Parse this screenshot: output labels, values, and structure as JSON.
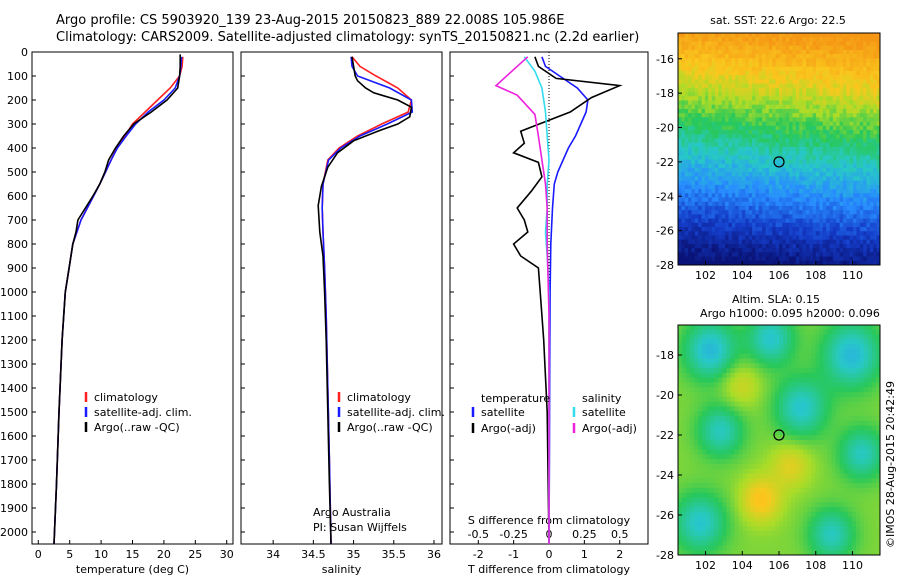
{
  "header": {
    "line1": "Argo profile: CS 5903920_139 23-Aug-2015 20150823_889 22.008S 105.986E",
    "line2": "Climatology: CARS2009. Satellite-adjusted climatology: synTS_20150821.nc (2.2d earlier)"
  },
  "credit": "©IMOS 28-Aug-2015 20:42:49",
  "colors": {
    "clim": "#ff2020",
    "sat": "#1a1aff",
    "argo": "#000000",
    "sal_sat": "#33ddee",
    "sal_argo": "#ee22dd"
  },
  "chart_data": [
    {
      "type": "line",
      "xlabel": "temperature (deg C)",
      "ylabel": "",
      "xlim": [
        -1,
        31
      ],
      "ylim": [
        0,
        2050
      ],
      "y_inverted": true,
      "xticks": [
        "0",
        "5",
        "10",
        "15",
        "20",
        "25",
        "30"
      ],
      "yticks": [
        "0",
        "100",
        "200",
        "300",
        "400",
        "500",
        "600",
        "700",
        "800",
        "900",
        "1000",
        "1100",
        "1200",
        "1300",
        "1400",
        "1500",
        "1600",
        "1700",
        "1800",
        "1900",
        "2000"
      ],
      "legend": [
        "climatology",
        "satellite-adj. clim.",
        "Argo(..raw -QC)"
      ],
      "series": [
        {
          "name": "climatology",
          "x": [
            23.0,
            22.9,
            22.5,
            21.0,
            19.0,
            17.0,
            15.0,
            13.8,
            12.5,
            11.6,
            10.7,
            9.8,
            8.8,
            7.8,
            6.8,
            5.5,
            4.9,
            4.3,
            3.8,
            3.3,
            2.9,
            2.5
          ],
          "y": [
            20,
            60,
            100,
            150,
            200,
            250,
            300,
            350,
            400,
            450,
            500,
            550,
            600,
            650,
            700,
            800,
            900,
            1000,
            1200,
            1500,
            1800,
            2050
          ]
        },
        {
          "name": "satellite-adj. clim.",
          "x": [
            22.8,
            22.7,
            22.5,
            21.8,
            20.0,
            17.5,
            15.5,
            14.0,
            12.6,
            11.6,
            10.7,
            9.8,
            8.8,
            7.8,
            6.8,
            5.5,
            4.9,
            4.3,
            3.8,
            3.3,
            2.9,
            2.5
          ],
          "y": [
            20,
            60,
            100,
            150,
            200,
            250,
            300,
            350,
            400,
            450,
            500,
            550,
            600,
            650,
            700,
            800,
            900,
            1000,
            1200,
            1500,
            1800,
            2050
          ]
        },
        {
          "name": "Argo(..raw -QC)",
          "x": [
            22.6,
            22.6,
            22.5,
            22.2,
            20.5,
            18.0,
            15.2,
            13.6,
            12.3,
            11.2,
            10.6,
            9.8,
            8.7,
            7.5,
            6.3,
            6.0,
            5.5,
            4.9,
            4.3,
            3.8,
            3.3,
            2.9,
            2.5
          ],
          "y": [
            10,
            60,
            100,
            150,
            200,
            250,
            300,
            350,
            400,
            450,
            500,
            550,
            600,
            650,
            700,
            750,
            800,
            900,
            1000,
            1200,
            1500,
            1800,
            2050
          ]
        }
      ]
    },
    {
      "type": "line",
      "xlabel": "salinity",
      "ylabel": "",
      "xlim": [
        33.6,
        36.1
      ],
      "ylim": [
        0,
        2050
      ],
      "y_inverted": true,
      "xticks": [
        "34",
        "34.5",
        "35",
        "35.5",
        "36"
      ],
      "legend": [
        "climatology",
        "satellite-adj. clim.",
        "Argo(..raw -QC)"
      ],
      "annotations": [
        "Argo Australia",
        "PI: Susan Wijffels"
      ],
      "series": [
        {
          "name": "climatology",
          "x": [
            34.98,
            35.08,
            35.28,
            35.55,
            35.72,
            35.68,
            35.35,
            35.05,
            34.82,
            34.68,
            34.62,
            34.61,
            34.62,
            34.64,
            34.66,
            34.68,
            34.7,
            34.72
          ],
          "y": [
            20,
            60,
            100,
            150,
            200,
            250,
            300,
            350,
            400,
            450,
            550,
            650,
            750,
            900,
            1100,
            1400,
            1700,
            2050
          ]
        },
        {
          "name": "satellite-adj. clim.",
          "x": [
            34.97,
            34.98,
            35.05,
            35.45,
            35.72,
            35.73,
            35.42,
            35.08,
            34.84,
            34.69,
            34.62,
            34.61,
            34.62,
            34.64,
            34.66,
            34.68,
            34.7,
            34.72
          ],
          "y": [
            20,
            60,
            100,
            150,
            200,
            250,
            300,
            350,
            400,
            450,
            550,
            650,
            750,
            900,
            1100,
            1400,
            1700,
            2050
          ]
        },
        {
          "name": "Argo(..raw -QC)",
          "x": [
            34.98,
            35.0,
            35.02,
            35.05,
            35.15,
            35.25,
            35.35,
            35.55,
            35.72,
            35.7,
            35.55,
            35.3,
            35.0,
            34.8,
            34.68,
            34.6,
            34.56,
            34.58,
            34.62,
            34.64,
            34.66,
            34.68,
            34.7,
            34.72
          ],
          "y": [
            20,
            60,
            100,
            120,
            150,
            170,
            180,
            200,
            230,
            270,
            300,
            330,
            370,
            420,
            480,
            560,
            640,
            750,
            850,
            1000,
            1200,
            1500,
            1800,
            2050
          ]
        }
      ]
    },
    {
      "type": "line",
      "xlabel": "T difference from climatology",
      "xlabel_top": "S difference from climatology",
      "ylabel": "",
      "xlim": [
        -2.8,
        2.8
      ],
      "ylim": [
        0,
        2050
      ],
      "y_inverted": true,
      "xticks": [
        "-2",
        "-1",
        "0",
        "1",
        "2"
      ],
      "xticks_top": [
        "-0.5",
        "-0.25",
        "0",
        "0.25",
        "0.5"
      ],
      "legend_left_title": "temperature",
      "legend_right_title": "salinity",
      "legend": [
        "satellite",
        "Argo(-adj)",
        "satellite",
        "Argo(-adj)"
      ],
      "series": [
        {
          "name": "temperature satellite",
          "x": [
            -0.2,
            -0.1,
            0.3,
            0.8,
            1.1,
            1.05,
            0.9,
            0.75,
            0.55,
            0.4,
            0.25,
            0.15,
            0.1,
            0.05,
            0.03,
            0.02,
            0.01,
            0.0
          ],
          "y": [
            20,
            60,
            100,
            150,
            200,
            250,
            300,
            350,
            400,
            450,
            500,
            550,
            650,
            800,
            1000,
            1300,
            1700,
            2050
          ]
        },
        {
          "name": "temperature Argo(-adj)",
          "x": [
            -0.4,
            -0.3,
            0.2,
            2.0,
            1.2,
            0.6,
            -0.8,
            -0.7,
            -1.0,
            -0.3,
            -0.2,
            -0.5,
            -0.9,
            -0.7,
            -0.6,
            -1.0,
            -0.8,
            -0.3,
            -0.25,
            -0.15,
            -0.05,
            0.0
          ],
          "y": [
            20,
            60,
            110,
            140,
            190,
            250,
            330,
            380,
            420,
            460,
            520,
            580,
            650,
            700,
            750,
            800,
            850,
            900,
            1000,
            1200,
            1500,
            2050
          ]
        },
        {
          "name": "salinity satellite",
          "x": [
            -0.7,
            -0.4,
            -0.2,
            -0.1,
            -0.05,
            0.0,
            -0.05,
            -0.05,
            -0.1,
            -0.05,
            0.0,
            0.0,
            0.0
          ],
          "y": [
            20,
            80,
            150,
            250,
            350,
            450,
            550,
            650,
            750,
            850,
            1000,
            1400,
            2050
          ]
        },
        {
          "name": "salinity Argo(-adj)",
          "x": [
            -0.6,
            -1.5,
            -0.9,
            -0.4,
            -0.3,
            -0.2,
            -0.1,
            -0.05,
            -0.05,
            0.0,
            0.0
          ],
          "y": [
            20,
            140,
            180,
            260,
            350,
            450,
            550,
            650,
            800,
            1100,
            2050
          ]
        }
      ]
    },
    {
      "type": "heatmap",
      "title": "sat. SST: 22.6  Argo: 22.5",
      "xlim": [
        100.5,
        111.5
      ],
      "ylim": [
        -28,
        -14.5
      ],
      "xticks": [
        "102",
        "104",
        "106",
        "108",
        "110"
      ],
      "yticks": [
        "-16",
        "-18",
        "-20",
        "-22",
        "-24",
        "-26",
        "-28"
      ],
      "marker": {
        "x": 106.0,
        "y": -22.0
      }
    },
    {
      "type": "heatmap",
      "title_line1": "Altim. SLA: 0.15",
      "title_line2": "Argo h1000: 0.095 h2000: 0.096",
      "xlim": [
        100.5,
        111.5
      ],
      "ylim": [
        -28,
        -16.5
      ],
      "xticks": [
        "102",
        "104",
        "106",
        "108",
        "110"
      ],
      "yticks": [
        "-18",
        "-20",
        "-22",
        "-24",
        "-26",
        "-28"
      ],
      "marker": {
        "x": 106.0,
        "y": -22.0
      }
    }
  ]
}
